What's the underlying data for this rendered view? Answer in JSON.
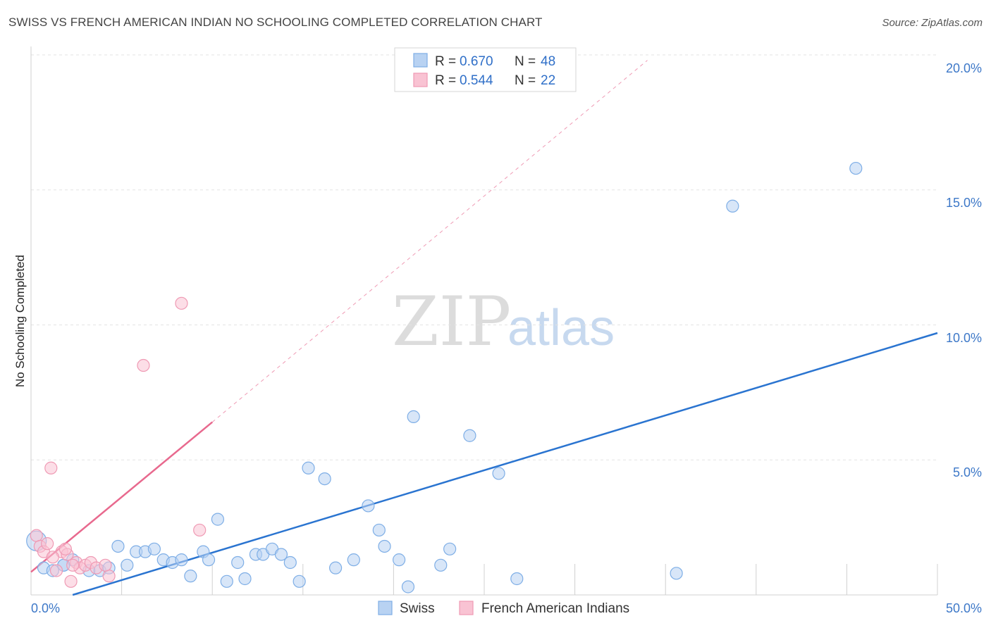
{
  "title": "SWISS VS FRENCH AMERICAN INDIAN NO SCHOOLING COMPLETED CORRELATION CHART",
  "source": "Source: ZipAtlas.com",
  "watermark": {
    "zip": "ZIP",
    "atlas": "atlas"
  },
  "colors": {
    "swiss_fill": "#b8d2f2",
    "swiss_stroke": "#7eaee6",
    "swiss_line": "#2a74d0",
    "french_fill": "#f9c3d3",
    "french_stroke": "#ef9ab4",
    "french_line": "#e8698e",
    "grid": "#e3e3e3",
    "axis_text": "#3d78c8"
  },
  "legend": {
    "rows": [
      {
        "r_label": "R =",
        "r_value": "0.670",
        "n_label": "N =",
        "n_value": "48"
      },
      {
        "r_label": "R =",
        "r_value": "0.544",
        "n_label": "N =",
        "n_value": "22"
      }
    ]
  },
  "chart_data": {
    "type": "scatter",
    "title": "SWISS VS FRENCH AMERICAN INDIAN NO SCHOOLING COMPLETED CORRELATION CHART",
    "xlabel": "",
    "ylabel": "No Schooling Completed",
    "xlim": [
      0,
      50
    ],
    "ylim": [
      0,
      20
    ],
    "x_tick_labels": [
      "0.0%",
      "50.0%"
    ],
    "y_ticks": [
      5,
      10,
      15,
      20
    ],
    "y_tick_labels": [
      "5.0%",
      "10.0%",
      "15.0%",
      "20.0%"
    ],
    "series": [
      {
        "name": "Swiss",
        "points": [
          [
            0.3,
            2.0
          ],
          [
            0.7,
            1.0
          ],
          [
            1.2,
            0.9
          ],
          [
            1.8,
            1.1
          ],
          [
            2.3,
            1.3
          ],
          [
            3.2,
            0.9
          ],
          [
            3.8,
            0.9
          ],
          [
            4.3,
            1.0
          ],
          [
            4.8,
            1.8
          ],
          [
            5.3,
            1.1
          ],
          [
            5.8,
            1.6
          ],
          [
            6.3,
            1.6
          ],
          [
            6.8,
            1.7
          ],
          [
            7.3,
            1.3
          ],
          [
            7.8,
            1.2
          ],
          [
            8.3,
            1.3
          ],
          [
            8.8,
            0.7
          ],
          [
            9.5,
            1.6
          ],
          [
            9.8,
            1.3
          ],
          [
            10.3,
            2.8
          ],
          [
            10.8,
            0.5
          ],
          [
            11.4,
            1.2
          ],
          [
            11.8,
            0.6
          ],
          [
            12.4,
            1.5
          ],
          [
            12.8,
            1.5
          ],
          [
            13.3,
            1.7
          ],
          [
            13.8,
            1.5
          ],
          [
            14.3,
            1.2
          ],
          [
            14.8,
            0.5
          ],
          [
            15.3,
            4.7
          ],
          [
            16.2,
            4.3
          ],
          [
            16.8,
            1.0
          ],
          [
            17.8,
            1.3
          ],
          [
            18.6,
            3.3
          ],
          [
            19.2,
            2.4
          ],
          [
            19.5,
            1.8
          ],
          [
            20.3,
            1.3
          ],
          [
            20.8,
            0.3
          ],
          [
            21.1,
            6.6
          ],
          [
            22.6,
            1.1
          ],
          [
            23.1,
            1.7
          ],
          [
            24.2,
            5.9
          ],
          [
            25.8,
            4.5
          ],
          [
            26.8,
            0.6
          ],
          [
            35.6,
            0.8
          ],
          [
            38.7,
            14.4
          ],
          [
            45.5,
            15.8
          ],
          [
            1.8,
            1.1
          ]
        ],
        "trend": {
          "x0": 2.3,
          "y0": 0.0,
          "x1": 50.0,
          "y1": 9.7
        }
      },
      {
        "name": "French American Indians",
        "points": [
          [
            0.3,
            2.2
          ],
          [
            0.5,
            1.8
          ],
          [
            0.7,
            1.6
          ],
          [
            0.9,
            1.9
          ],
          [
            1.1,
            4.7
          ],
          [
            1.4,
            0.9
          ],
          [
            1.7,
            1.6
          ],
          [
            2.0,
            1.5
          ],
          [
            2.2,
            0.5
          ],
          [
            2.5,
            1.2
          ],
          [
            2.7,
            1.0
          ],
          [
            3.0,
            1.1
          ],
          [
            3.3,
            1.2
          ],
          [
            3.6,
            1.0
          ],
          [
            4.3,
            0.7
          ],
          [
            6.2,
            8.5
          ],
          [
            8.3,
            10.8
          ],
          [
            9.3,
            2.4
          ],
          [
            1.9,
            1.7
          ],
          [
            2.3,
            1.1
          ],
          [
            1.2,
            1.4
          ],
          [
            4.1,
            1.1
          ]
        ],
        "trend": {
          "x0": 0.0,
          "y0": 0.85,
          "x1": 10.0,
          "y1": 6.4
        },
        "trend_dashed": {
          "x0": 10.0,
          "y0": 6.4,
          "x1": 34.0,
          "y1": 19.8
        }
      }
    ],
    "legend_labels": [
      "Swiss",
      "French American Indians"
    ]
  }
}
